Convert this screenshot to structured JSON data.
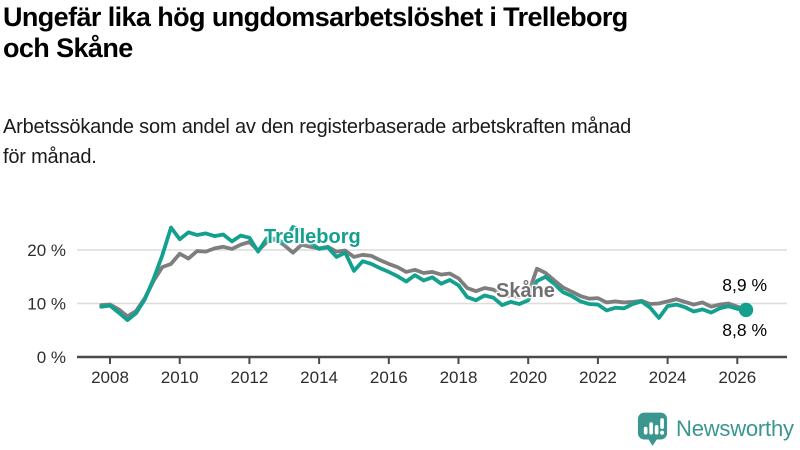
{
  "chart_data": {
    "type": "line",
    "title": "Ungefär lika hög ungdomsarbetslöshet i Trelleborg\noch Skåne",
    "subtitle": "Arbetssökande som andel av den registerbaserade arbetskraften månad\nför månad.",
    "xlabel": "",
    "ylabel": "",
    "x_start": 2007.75,
    "x_step": 0.25,
    "x_ticks": [
      2008,
      2010,
      2012,
      2014,
      2016,
      2018,
      2020,
      2022,
      2024,
      2026
    ],
    "x_tick_labels": [
      "2008",
      "2010",
      "2012",
      "2014",
      "2016",
      "2018",
      "2020",
      "2022",
      "2024",
      "2026"
    ],
    "y_ticks": [
      0,
      10,
      20
    ],
    "y_tick_labels": [
      "0 %",
      "10 %",
      "20 %"
    ],
    "ylim": [
      0,
      26
    ],
    "grid": "horizontal",
    "legend_position": "inline-labels-on-lines",
    "series": [
      {
        "name": "Skåne",
        "color": "#7e7e7e",
        "end_label": "8,9 %",
        "end_dot": false,
        "values": [
          9.7,
          9.8,
          8.9,
          7.6,
          8.6,
          11.0,
          14.2,
          16.8,
          17.4,
          19.3,
          18.4,
          19.8,
          19.7,
          20.3,
          20.6,
          20.2,
          21.0,
          21.5,
          19.9,
          21.5,
          22.0,
          20.9,
          19.5,
          21.0,
          20.6,
          20.3,
          20.6,
          19.7,
          19.9,
          18.7,
          19.1,
          18.9,
          18.1,
          17.4,
          16.8,
          15.9,
          16.3,
          15.7,
          15.9,
          15.4,
          15.6,
          14.7,
          12.9,
          12.3,
          12.9,
          12.6,
          11.6,
          11.4,
          11.3,
          11.8,
          16.5,
          15.7,
          14.3,
          13.0,
          12.2,
          11.4,
          10.9,
          11.0,
          10.2,
          10.4,
          10.2,
          10.3,
          10.5,
          9.9,
          10.0,
          10.4,
          10.8,
          10.3,
          9.8,
          10.2,
          9.4,
          9.8,
          10.0,
          9.4,
          8.9
        ]
      },
      {
        "name": "Trelleborg",
        "color": "#14a08f",
        "end_label": "8,8 %",
        "end_dot": true,
        "values": [
          9.4,
          9.6,
          8.3,
          6.9,
          8.2,
          10.8,
          14.6,
          19.0,
          24.2,
          22.0,
          23.3,
          22.8,
          23.1,
          22.6,
          22.9,
          21.6,
          22.7,
          22.3,
          19.7,
          22.2,
          22.1,
          21.3,
          24.3,
          23.6,
          21.4,
          20.2,
          20.5,
          18.7,
          19.5,
          16.1,
          17.9,
          17.4,
          16.6,
          15.9,
          15.1,
          14.1,
          15.3,
          14.3,
          14.9,
          13.7,
          14.4,
          13.4,
          11.2,
          10.6,
          11.5,
          11.1,
          9.7,
          10.3,
          9.9,
          10.6,
          14.2,
          15.0,
          13.6,
          12.1,
          11.4,
          10.4,
          9.9,
          9.8,
          8.7,
          9.2,
          9.1,
          9.9,
          10.4,
          9.2,
          7.3,
          9.5,
          9.8,
          9.3,
          8.5,
          8.9,
          8.3,
          9.1,
          9.5,
          9.0,
          8.8
        ]
      }
    ]
  },
  "logo": {
    "text": "Newsworthy",
    "brand_color": "#3b968f",
    "icon": "newsworthy-speech-bubble-bar-chart-icon"
  }
}
